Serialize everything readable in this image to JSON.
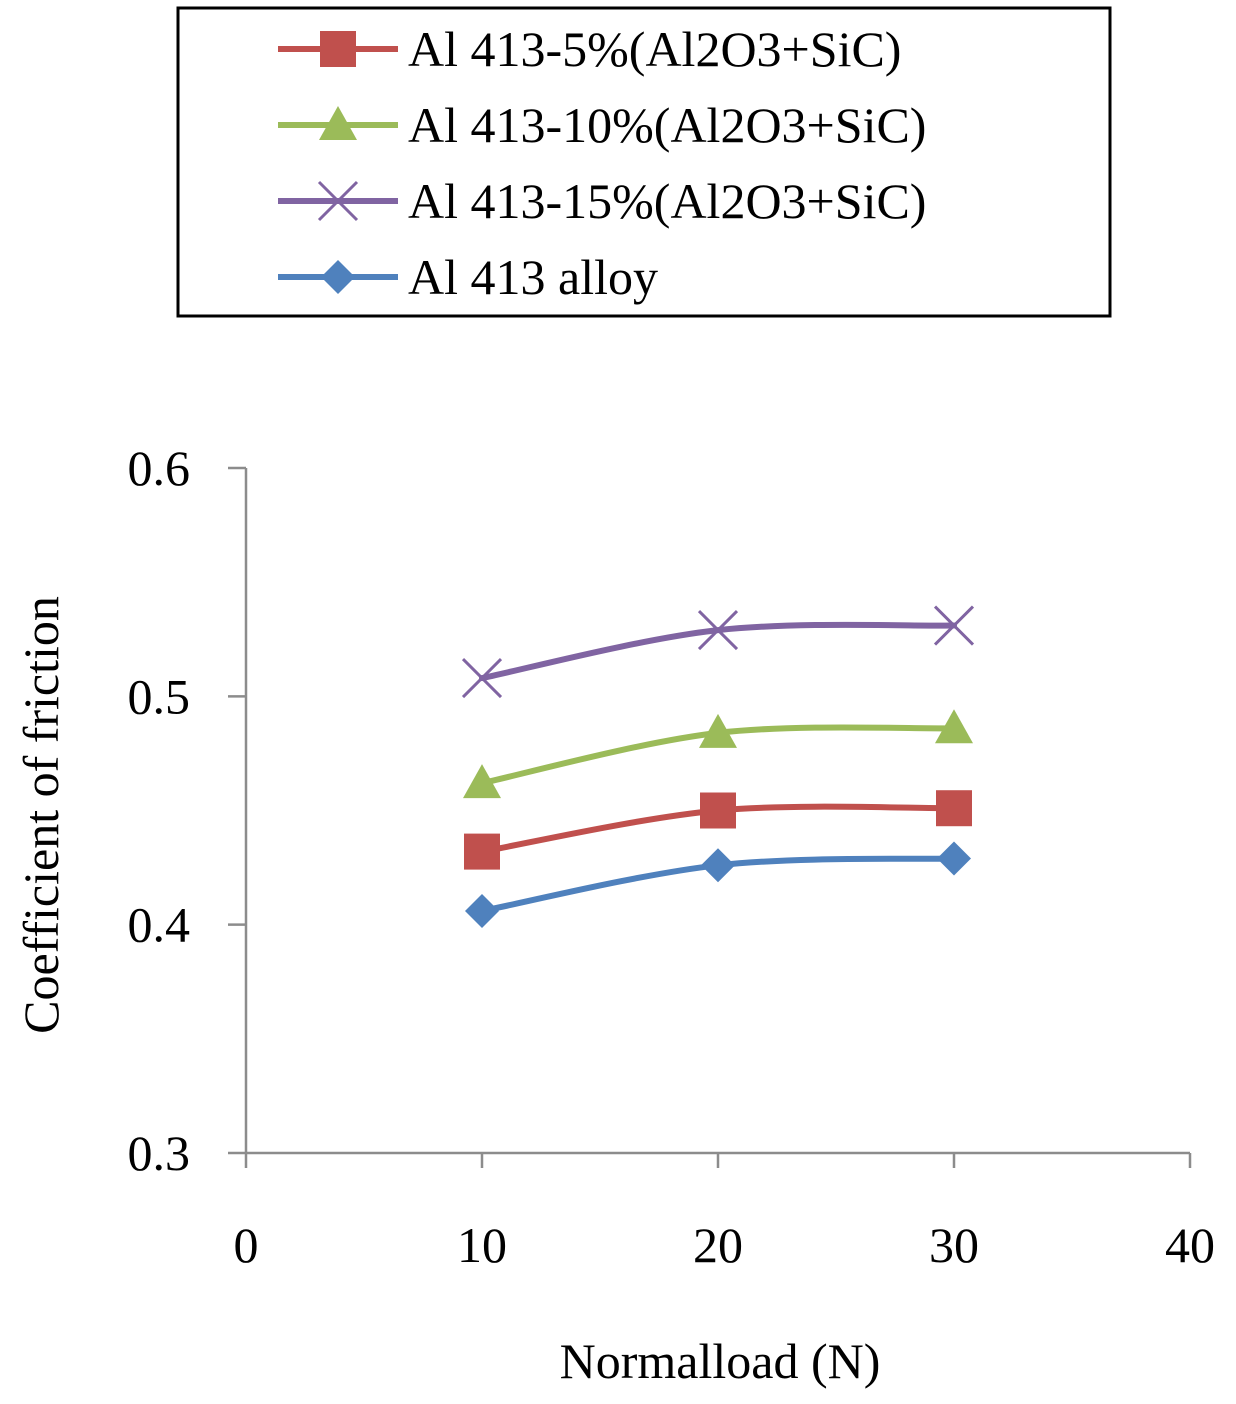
{
  "chart_data": {
    "type": "line",
    "title": "",
    "xlabel": "Normalload (N)",
    "ylabel": "Coefficient of friction",
    "xlim": [
      0,
      40
    ],
    "ylim": [
      0.3,
      0.6
    ],
    "xticks": [
      "0",
      "10",
      "20",
      "30",
      "40"
    ],
    "yticks": [
      "0.3",
      "0.4",
      "0.5",
      "0.6"
    ],
    "grid": false,
    "legend_position": "top",
    "x": [
      10,
      20,
      30
    ],
    "series": [
      {
        "name": "Al 413-5%(Al2O3+SiC)",
        "values": [
          0.432,
          0.45,
          0.451
        ],
        "color": "#c0504d",
        "marker": "square"
      },
      {
        "name": "Al 413-10%(Al2O3+SiC)",
        "values": [
          0.462,
          0.484,
          0.486
        ],
        "color": "#9bbb59",
        "marker": "triangle"
      },
      {
        "name": "Al 413-15%(Al2O3+SiC)",
        "values": [
          0.508,
          0.529,
          0.531
        ],
        "color": "#8064a2",
        "marker": "x"
      },
      {
        "name": "Al 413 alloy",
        "values": [
          0.406,
          0.426,
          0.429
        ],
        "color": "#4f81bd",
        "marker": "diamond"
      }
    ]
  }
}
